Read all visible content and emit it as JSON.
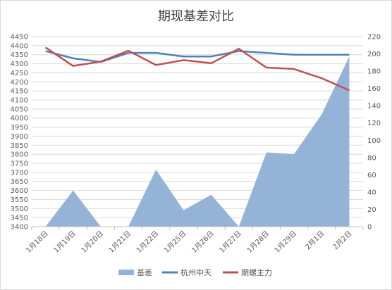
{
  "chart_data": {
    "type": "area+line",
    "title": "期现基差对比",
    "categories": [
      "1月18日",
      "1月19日",
      "1月20日",
      "1月21日",
      "1月22日",
      "1月25日",
      "1月26日",
      "1月27日",
      "1月28日",
      "1月29日",
      "2月1日",
      "2月2日"
    ],
    "left_axis": {
      "min": 3400,
      "max": 4450,
      "step": 50
    },
    "right_axis": {
      "min": 0,
      "max": 220,
      "step": 20
    },
    "series": [
      {
        "name": "基差",
        "type": "area",
        "axis": "right",
        "color": "#95B3D7",
        "values": [
          0,
          42,
          0,
          0,
          66,
          19,
          37,
          0,
          86,
          84,
          130,
          197
        ]
      },
      {
        "name": "杭州中天",
        "type": "line",
        "axis": "left",
        "color": "#4F81BD",
        "values": [
          4370,
          4330,
          4310,
          4360,
          4360,
          4340,
          4340,
          4370,
          4360,
          4350,
          4350,
          4350
        ]
      },
      {
        "name": "期螺主力",
        "type": "line",
        "axis": "left",
        "color": "#C0504D",
        "values": [
          4390,
          4288,
          4312,
          4372,
          4293,
          4320,
          4303,
          4383,
          4279,
          4271,
          4220,
          4153
        ]
      }
    ],
    "legend_position": "bottom",
    "grid": true
  }
}
